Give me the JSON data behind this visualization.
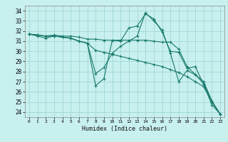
{
  "xlabel": "Humidex (Indice chaleur)",
  "bg_color": "#c8f0ee",
  "grid_color": "#a0d8d4",
  "line_color": "#1a7a6e",
  "xlim": [
    -0.5,
    23.5
  ],
  "ylim": [
    23.5,
    34.5
  ],
  "yticks": [
    24,
    25,
    26,
    27,
    28,
    29,
    30,
    31,
    32,
    33,
    34
  ],
  "xticks": [
    0,
    1,
    2,
    3,
    4,
    5,
    6,
    7,
    8,
    9,
    10,
    11,
    12,
    13,
    14,
    15,
    16,
    17,
    18,
    19,
    20,
    21,
    22,
    23
  ],
  "series": [
    [
      31.7,
      31.6,
      31.5,
      31.6,
      31.5,
      31.5,
      31.4,
      31.2,
      31.2,
      31.1,
      31.1,
      31.1,
      31.1,
      31.1,
      31.1,
      31.0,
      30.9,
      30.9,
      30.2,
      28.5,
      27.7,
      26.8,
      25.0,
      23.8
    ],
    [
      31.7,
      31.6,
      31.5,
      31.5,
      31.4,
      31.3,
      31.0,
      30.8,
      26.6,
      27.3,
      31.1,
      31.0,
      32.3,
      32.5,
      33.7,
      33.2,
      31.9,
      30.0,
      29.9,
      28.3,
      28.5,
      26.7,
      24.7,
      23.8
    ],
    [
      31.7,
      31.6,
      31.5,
      31.5,
      31.4,
      31.3,
      31.0,
      30.8,
      27.8,
      28.4,
      29.8,
      30.5,
      31.0,
      31.5,
      33.8,
      33.0,
      32.1,
      29.8,
      27.0,
      28.1,
      27.7,
      27.0,
      25.1,
      23.8
    ],
    [
      31.7,
      31.5,
      31.3,
      31.5,
      31.4,
      31.3,
      31.0,
      30.8,
      30.1,
      29.9,
      29.7,
      29.5,
      29.3,
      29.1,
      28.9,
      28.7,
      28.5,
      28.2,
      27.9,
      27.5,
      27.0,
      26.5,
      25.0,
      23.8
    ]
  ]
}
